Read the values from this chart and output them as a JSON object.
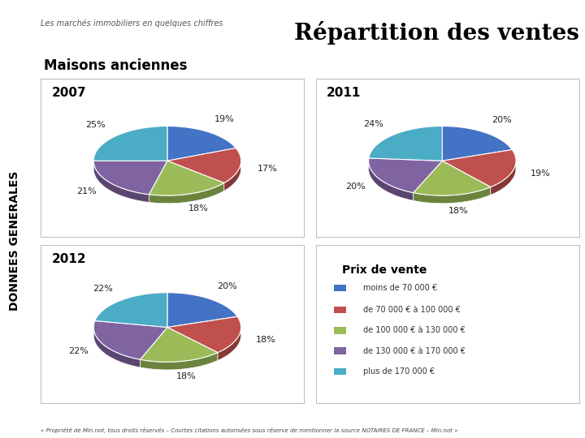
{
  "title": "Répartition des ventes",
  "subtitle": "Les marchés immobiliers en quelques chiffres",
  "section_title": "Maisons anciennes",
  "donnees_label": "DONNEES GENERALES",
  "footer": "« Propriété de Min.not, tous droits réservés – Courtes citations autorisées sous réserve de mentionner la source NOTAIRES DE FRANCE – Min.not »",
  "years": [
    "2007",
    "2011",
    "2012"
  ],
  "pie_data": {
    "2007": [
      19,
      17,
      18,
      21,
      25
    ],
    "2011": [
      20,
      19,
      18,
      20,
      24
    ],
    "2012": [
      20,
      18,
      18,
      22,
      22
    ]
  },
  "pie_labels": {
    "2007": [
      "19%",
      "17%",
      "18%",
      "21%",
      "25%"
    ],
    "2011": [
      "20%",
      "19%",
      "18%",
      "20%",
      "24%"
    ],
    "2012": [
      "20%",
      "18%",
      "18%",
      "22%",
      "22%"
    ]
  },
  "colors": [
    "#4472C4",
    "#C0504D",
    "#9BBB59",
    "#8064A2",
    "#4BACC6"
  ],
  "legend_title": "Prix de vente",
  "legend_items": [
    "moins de 70 000 €",
    "de 70 000 € à 100 000 €",
    "de 100 000 € à 130 000 €",
    "de 130 000 € à 170 000 €",
    "plus de 170 000 €"
  ],
  "bg_color": "#FFFFFF",
  "border_color": "#BBBBBB",
  "title_color": "#000000",
  "donnees_color": "#000000",
  "label_fontsize": 8,
  "year_fontsize": 11,
  "section_fontsize": 12,
  "title_fontsize": 20,
  "subtitle_fontsize": 7,
  "legend_title_fontsize": 10,
  "legend_item_fontsize": 7,
  "footer_fontsize": 5
}
